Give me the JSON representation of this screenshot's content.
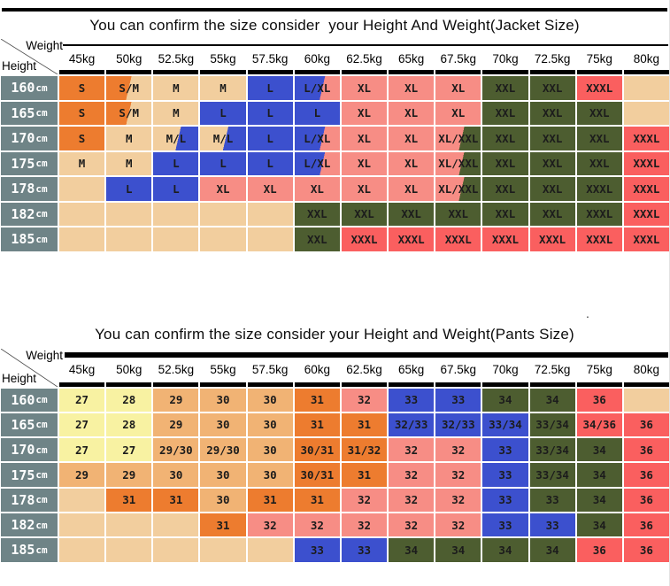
{
  "palette": {
    "or": "#ED7C2F",
    "tn": "#F2CE9E",
    "bl": "#3C50CE",
    "pk": "#F78D85",
    "gn": "#4D5D30",
    "rd": "#FA5F5F",
    "yl": "#F8F2A2",
    "lo": "#F1B374",
    "slate": "#6F8487",
    "rule": "#000000"
  },
  "corner": {
    "top_right": "Weight",
    "bottom_left": "Height"
  },
  "weights": [
    "45kg",
    "50kg",
    "52.5kg",
    "55kg",
    "57.5kg",
    "60kg",
    "62.5kg",
    "65kg",
    "67.5kg",
    "70kg",
    "72.5kg",
    "75kg",
    "80kg"
  ],
  "heights": [
    "160cm",
    "165cm",
    "170cm",
    "175cm",
    "178cm",
    "182cm",
    "185cm"
  ],
  "stray_mark": ".",
  "chart_data": [
    {
      "type": "table",
      "title": "You can confirm the size consider  your Height And Weight(Jacket Size)",
      "corner": {
        "top_right": "Weight",
        "bottom_left": "Height"
      },
      "columns": [
        "45kg",
        "50kg",
        "52.5kg",
        "55kg",
        "57.5kg",
        "60kg",
        "62.5kg",
        "65kg",
        "67.5kg",
        "70kg",
        "72.5kg",
        "75kg",
        "80kg"
      ],
      "row_headers": [
        "160cm",
        "165cm",
        "170cm",
        "175cm",
        "178cm",
        "182cm",
        "185cm"
      ],
      "rows": [
        [
          {
            "v": "S",
            "c": "or"
          },
          {
            "v": "S/M",
            "c": "or",
            "c2": "tn",
            "s": 50
          },
          {
            "v": "M",
            "c": "tn"
          },
          {
            "v": "M",
            "c": "tn"
          },
          {
            "v": "L",
            "c": "bl"
          },
          {
            "v": "L/XL",
            "c": "bl",
            "c2": "pk",
            "s": 60
          },
          {
            "v": "XL",
            "c": "pk"
          },
          {
            "v": "XL",
            "c": "pk"
          },
          {
            "v": "XL",
            "c": "pk"
          },
          {
            "v": "XXL",
            "c": "gn"
          },
          {
            "v": "XXL",
            "c": "gn"
          },
          {
            "v": "XXXL",
            "c": "rd"
          },
          {
            "v": "",
            "c": "tn"
          }
        ],
        [
          {
            "v": "S",
            "c": "or"
          },
          {
            "v": "S/M",
            "c": "or",
            "c2": "tn",
            "s": 50
          },
          {
            "v": "M",
            "c": "tn"
          },
          {
            "v": "L",
            "c": "bl"
          },
          {
            "v": "L",
            "c": "bl"
          },
          {
            "v": "L",
            "c": "bl"
          },
          {
            "v": "XL",
            "c": "pk"
          },
          {
            "v": "XL",
            "c": "pk"
          },
          {
            "v": "XL",
            "c": "pk"
          },
          {
            "v": "XXL",
            "c": "gn"
          },
          {
            "v": "XXL",
            "c": "gn"
          },
          {
            "v": "XXL",
            "c": "gn"
          },
          {
            "v": "",
            "c": "tn"
          }
        ],
        [
          {
            "v": "S",
            "c": "or"
          },
          {
            "v": "M",
            "c": "tn"
          },
          {
            "v": "M/L",
            "c": "tn",
            "c2": "bl",
            "s": 55
          },
          {
            "v": "M/L",
            "c": "tn",
            "c2": "bl",
            "s": 55
          },
          {
            "v": "L",
            "c": "bl"
          },
          {
            "v": "L/XL",
            "c": "bl",
            "c2": "pk",
            "s": 60
          },
          {
            "v": "XL",
            "c": "pk"
          },
          {
            "v": "XL",
            "c": "pk"
          },
          {
            "v": "XL/XXL",
            "c": "pk",
            "c2": "gn",
            "s": 57
          },
          {
            "v": "XXL",
            "c": "gn"
          },
          {
            "v": "XXL",
            "c": "gn"
          },
          {
            "v": "XXL",
            "c": "gn"
          },
          {
            "v": "XXXL",
            "c": "rd"
          }
        ],
        [
          {
            "v": "M",
            "c": "tn"
          },
          {
            "v": "M",
            "c": "tn"
          },
          {
            "v": "L",
            "c": "bl"
          },
          {
            "v": "L",
            "c": "bl"
          },
          {
            "v": "L",
            "c": "bl"
          },
          {
            "v": "L/XL",
            "c": "bl",
            "c2": "pk",
            "s": 60
          },
          {
            "v": "XL",
            "c": "pk"
          },
          {
            "v": "XL",
            "c": "pk"
          },
          {
            "v": "XL/XXL",
            "c": "pk",
            "c2": "gn",
            "s": 57
          },
          {
            "v": "XXL",
            "c": "gn"
          },
          {
            "v": "XXL",
            "c": "gn"
          },
          {
            "v": "XXL",
            "c": "gn"
          },
          {
            "v": "XXXL",
            "c": "rd"
          }
        ],
        [
          {
            "v": "",
            "c": "tn"
          },
          {
            "v": "L",
            "c": "bl"
          },
          {
            "v": "L",
            "c": "bl"
          },
          {
            "v": "XL",
            "c": "pk"
          },
          {
            "v": "XL",
            "c": "pk"
          },
          {
            "v": "XL",
            "c": "pk"
          },
          {
            "v": "XL",
            "c": "pk"
          },
          {
            "v": "XL",
            "c": "pk"
          },
          {
            "v": "XL/XXL",
            "c": "pk",
            "c2": "gn",
            "s": 57
          },
          {
            "v": "XXL",
            "c": "gn"
          },
          {
            "v": "XXL",
            "c": "gn"
          },
          {
            "v": "XXXL",
            "c": "gn"
          },
          {
            "v": "XXXL",
            "c": "rd"
          }
        ],
        [
          {
            "v": "",
            "c": "tn"
          },
          {
            "v": "",
            "c": "tn"
          },
          {
            "v": "",
            "c": "tn"
          },
          {
            "v": "",
            "c": "tn"
          },
          {
            "v": "",
            "c": "tn"
          },
          {
            "v": "XXL",
            "c": "gn"
          },
          {
            "v": "XXL",
            "c": "gn"
          },
          {
            "v": "XXL",
            "c": "gn"
          },
          {
            "v": "XXL",
            "c": "gn"
          },
          {
            "v": "XXL",
            "c": "gn"
          },
          {
            "v": "XXL",
            "c": "gn"
          },
          {
            "v": "XXXL",
            "c": "gn"
          },
          {
            "v": "XXXL",
            "c": "rd"
          }
        ],
        [
          {
            "v": "",
            "c": "tn"
          },
          {
            "v": "",
            "c": "tn"
          },
          {
            "v": "",
            "c": "tn"
          },
          {
            "v": "",
            "c": "tn"
          },
          {
            "v": "",
            "c": "tn"
          },
          {
            "v": "XXL",
            "c": "gn"
          },
          {
            "v": "XXXL",
            "c": "rd"
          },
          {
            "v": "XXXL",
            "c": "rd"
          },
          {
            "v": "XXXL",
            "c": "rd"
          },
          {
            "v": "XXXL",
            "c": "rd"
          },
          {
            "v": "XXXL",
            "c": "rd"
          },
          {
            "v": "XXXL",
            "c": "rd"
          },
          {
            "v": "XXXL",
            "c": "rd"
          }
        ]
      ]
    },
    {
      "type": "table",
      "title": "You can confirm the size consider your Height and Weight(Pants Size)",
      "corner": {
        "top_right": "Weight",
        "bottom_left": "Height"
      },
      "columns": [
        "45kg",
        "50kg",
        "52.5kg",
        "55kg",
        "57.5kg",
        "60kg",
        "62.5kg",
        "65kg",
        "67.5kg",
        "70kg",
        "72.5kg",
        "75kg",
        "80kg"
      ],
      "row_headers": [
        "160cm",
        "165cm",
        "170cm",
        "175cm",
        "178cm",
        "182cm",
        "185cm"
      ],
      "rows": [
        [
          {
            "v": "27",
            "c": "yl"
          },
          {
            "v": "28",
            "c": "yl"
          },
          {
            "v": "29",
            "c": "lo"
          },
          {
            "v": "30",
            "c": "lo"
          },
          {
            "v": "30",
            "c": "lo"
          },
          {
            "v": "31",
            "c": "or"
          },
          {
            "v": "32",
            "c": "pk"
          },
          {
            "v": "33",
            "c": "bl"
          },
          {
            "v": "33",
            "c": "bl"
          },
          {
            "v": "34",
            "c": "gn"
          },
          {
            "v": "34",
            "c": "gn"
          },
          {
            "v": "36",
            "c": "rd"
          },
          {
            "v": "",
            "c": "tn"
          }
        ],
        [
          {
            "v": "27",
            "c": "yl"
          },
          {
            "v": "28",
            "c": "yl"
          },
          {
            "v": "29",
            "c": "lo"
          },
          {
            "v": "30",
            "c": "lo"
          },
          {
            "v": "30",
            "c": "lo"
          },
          {
            "v": "31",
            "c": "or"
          },
          {
            "v": "31",
            "c": "or"
          },
          {
            "v": "32/33",
            "c": "bl"
          },
          {
            "v": "32/33",
            "c": "bl"
          },
          {
            "v": "33/34",
            "c": "bl"
          },
          {
            "v": "33/34",
            "c": "gn"
          },
          {
            "v": "34/36",
            "c": "rd"
          },
          {
            "v": "36",
            "c": "rd"
          }
        ],
        [
          {
            "v": "27",
            "c": "yl"
          },
          {
            "v": "27",
            "c": "yl"
          },
          {
            "v": "29/30",
            "c": "lo"
          },
          {
            "v": "29/30",
            "c": "lo"
          },
          {
            "v": "30",
            "c": "lo"
          },
          {
            "v": "30/31",
            "c": "or"
          },
          {
            "v": "31/32",
            "c": "or"
          },
          {
            "v": "32",
            "c": "pk"
          },
          {
            "v": "32",
            "c": "pk"
          },
          {
            "v": "33",
            "c": "bl"
          },
          {
            "v": "33/34",
            "c": "gn"
          },
          {
            "v": "34",
            "c": "gn"
          },
          {
            "v": "36",
            "c": "rd"
          }
        ],
        [
          {
            "v": "29",
            "c": "lo"
          },
          {
            "v": "29",
            "c": "lo"
          },
          {
            "v": "30",
            "c": "lo"
          },
          {
            "v": "30",
            "c": "lo"
          },
          {
            "v": "30",
            "c": "lo"
          },
          {
            "v": "30/31",
            "c": "or"
          },
          {
            "v": "31",
            "c": "or"
          },
          {
            "v": "32",
            "c": "pk"
          },
          {
            "v": "32",
            "c": "pk"
          },
          {
            "v": "33",
            "c": "bl"
          },
          {
            "v": "33/34",
            "c": "gn"
          },
          {
            "v": "34",
            "c": "gn"
          },
          {
            "v": "36",
            "c": "rd"
          }
        ],
        [
          {
            "v": "",
            "c": "tn"
          },
          {
            "v": "31",
            "c": "or"
          },
          {
            "v": "31",
            "c": "or"
          },
          {
            "v": "30",
            "c": "lo"
          },
          {
            "v": "31",
            "c": "or"
          },
          {
            "v": "31",
            "c": "or"
          },
          {
            "v": "32",
            "c": "pk"
          },
          {
            "v": "32",
            "c": "pk"
          },
          {
            "v": "32",
            "c": "pk"
          },
          {
            "v": "33",
            "c": "bl"
          },
          {
            "v": "33",
            "c": "gn"
          },
          {
            "v": "34",
            "c": "gn"
          },
          {
            "v": "36",
            "c": "rd"
          }
        ],
        [
          {
            "v": "",
            "c": "tn"
          },
          {
            "v": "",
            "c": "tn"
          },
          {
            "v": "",
            "c": "tn"
          },
          {
            "v": "31",
            "c": "or"
          },
          {
            "v": "32",
            "c": "pk"
          },
          {
            "v": "32",
            "c": "pk"
          },
          {
            "v": "32",
            "c": "pk"
          },
          {
            "v": "32",
            "c": "pk"
          },
          {
            "v": "32",
            "c": "pk"
          },
          {
            "v": "33",
            "c": "bl"
          },
          {
            "v": "33",
            "c": "bl"
          },
          {
            "v": "34",
            "c": "gn"
          },
          {
            "v": "36",
            "c": "rd"
          }
        ],
        [
          {
            "v": "",
            "c": "tn"
          },
          {
            "v": "",
            "c": "tn"
          },
          {
            "v": "",
            "c": "tn"
          },
          {
            "v": "",
            "c": "tn"
          },
          {
            "v": "",
            "c": "tn"
          },
          {
            "v": "33",
            "c": "bl"
          },
          {
            "v": "33",
            "c": "bl"
          },
          {
            "v": "34",
            "c": "gn"
          },
          {
            "v": "34",
            "c": "gn"
          },
          {
            "v": "34",
            "c": "gn"
          },
          {
            "v": "34",
            "c": "gn"
          },
          {
            "v": "36",
            "c": "rd"
          },
          {
            "v": "36",
            "c": "rd"
          }
        ]
      ]
    }
  ]
}
